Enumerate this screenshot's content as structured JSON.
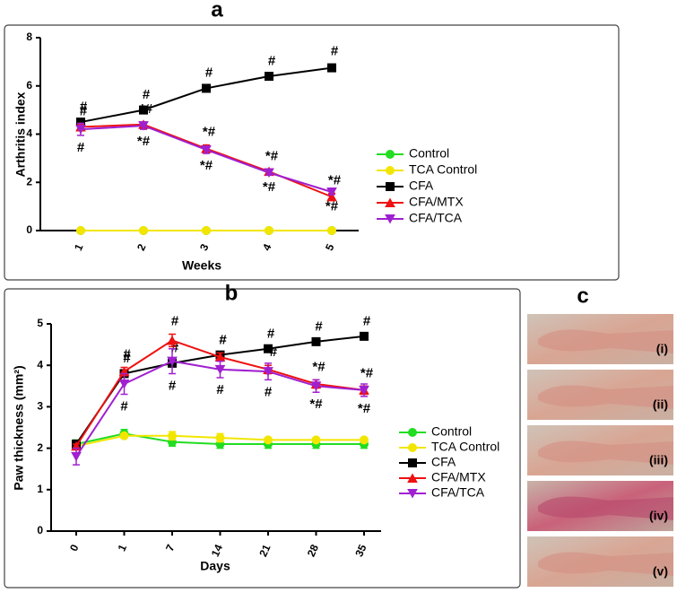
{
  "chart_data": [
    {
      "type": "line",
      "title": "a",
      "x_label": "Weeks",
      "y_label": "Arthritis index",
      "categories": [
        "1",
        "2",
        "3",
        "4",
        "5"
      ],
      "ylim": [
        0,
        8
      ],
      "yticks": [
        0,
        2,
        4,
        6,
        8
      ],
      "series": [
        {
          "name": "Control",
          "color": "#22dd22",
          "marker": "circle",
          "values": [
            0,
            0,
            0,
            0,
            0
          ]
        },
        {
          "name": "TCA Control",
          "color": "#f2e600",
          "marker": "circle",
          "values": [
            0,
            0,
            0,
            0,
            0
          ]
        },
        {
          "name": "CFA",
          "color": "#000000",
          "marker": "square",
          "values": [
            4.5,
            5.0,
            5.9,
            6.4,
            6.75
          ],
          "errors": [
            0.1,
            0.1,
            0.1,
            0.1,
            0.15
          ],
          "annotations": [
            "#",
            "#",
            "#",
            "#",
            "#"
          ],
          "annotation_side": "above"
        },
        {
          "name": "CFA/MTX",
          "color": "#ee1111",
          "marker": "triangle",
          "values": [
            4.3,
            4.4,
            3.4,
            2.45,
            1.4
          ],
          "errors": [
            0.1,
            0.1,
            0.15,
            0.1,
            0.15
          ],
          "annotations": [
            "#",
            "*#",
            "*#",
            "*#",
            "*#"
          ],
          "annotation_side": "above"
        },
        {
          "name": "CFA/TCA",
          "color": "#a020d0",
          "marker": "triangle-down",
          "values": [
            4.2,
            4.35,
            3.35,
            2.4,
            1.6
          ],
          "errors": [
            0.25,
            0.15,
            0.15,
            0.1,
            0.1
          ],
          "annotations": [
            "#",
            "*#",
            "*#",
            "*#",
            "*#"
          ],
          "annotation_side": "below"
        }
      ]
    },
    {
      "type": "line",
      "title": "b",
      "x_label": "Days",
      "y_label": "Paw thickness (mm²)",
      "categories": [
        "0",
        "1",
        "7",
        "14",
        "21",
        "28",
        "35"
      ],
      "ylim": [
        0,
        5
      ],
      "yticks": [
        0,
        1,
        2,
        3,
        4,
        5
      ],
      "series": [
        {
          "name": "Control",
          "color": "#22dd22",
          "marker": "circle",
          "values": [
            2.1,
            2.35,
            2.15,
            2.1,
            2.1,
            2.1,
            2.1
          ],
          "errors": [
            0.1,
            0.1,
            0.1,
            0.1,
            0.1,
            0.1,
            0.1
          ]
        },
        {
          "name": "TCA Control",
          "color": "#f2e600",
          "marker": "circle",
          "values": [
            2.05,
            2.3,
            2.3,
            2.25,
            2.2,
            2.2,
            2.2
          ],
          "errors": [
            0.05,
            0.05,
            0.1,
            0.1,
            0.05,
            0.05,
            0.05
          ]
        },
        {
          "name": "CFA",
          "color": "#000000",
          "marker": "square",
          "values": [
            2.1,
            3.8,
            4.05,
            4.25,
            4.4,
            4.57,
            4.7
          ],
          "errors": [
            0.05,
            0.05,
            0.05,
            0.05,
            0.05,
            0.05,
            0.05
          ],
          "annotations": [
            null,
            "#",
            "#",
            "#",
            "#",
            "#",
            "#"
          ],
          "annotation_side": "above"
        },
        {
          "name": "CFA/MTX",
          "color": "#ee1111",
          "marker": "triangle",
          "values": [
            2.05,
            3.85,
            4.6,
            4.2,
            3.9,
            3.55,
            3.4
          ],
          "errors": [
            0.05,
            0.1,
            0.15,
            0.1,
            0.1,
            0.1,
            0.1
          ],
          "annotations": [
            null,
            "#",
            "#",
            "#",
            "*#",
            "*#",
            "*#"
          ],
          "annotation_side": "above"
        },
        {
          "name": "CFA/TCA",
          "color": "#a020d0",
          "marker": "triangle-down",
          "values": [
            1.8,
            3.55,
            4.1,
            3.9,
            3.85,
            3.5,
            3.4
          ],
          "errors": [
            0.2,
            0.25,
            0.3,
            0.2,
            0.2,
            0.15,
            0.15
          ],
          "annotations": [
            null,
            "#",
            "#",
            "#",
            "#",
            "*#",
            "*#"
          ],
          "annotation_side": "below"
        }
      ]
    }
  ],
  "panel_c": {
    "title": "c",
    "labels": [
      "(i)",
      "(ii)",
      "(iii)",
      "(iv)",
      "(v)"
    ]
  }
}
